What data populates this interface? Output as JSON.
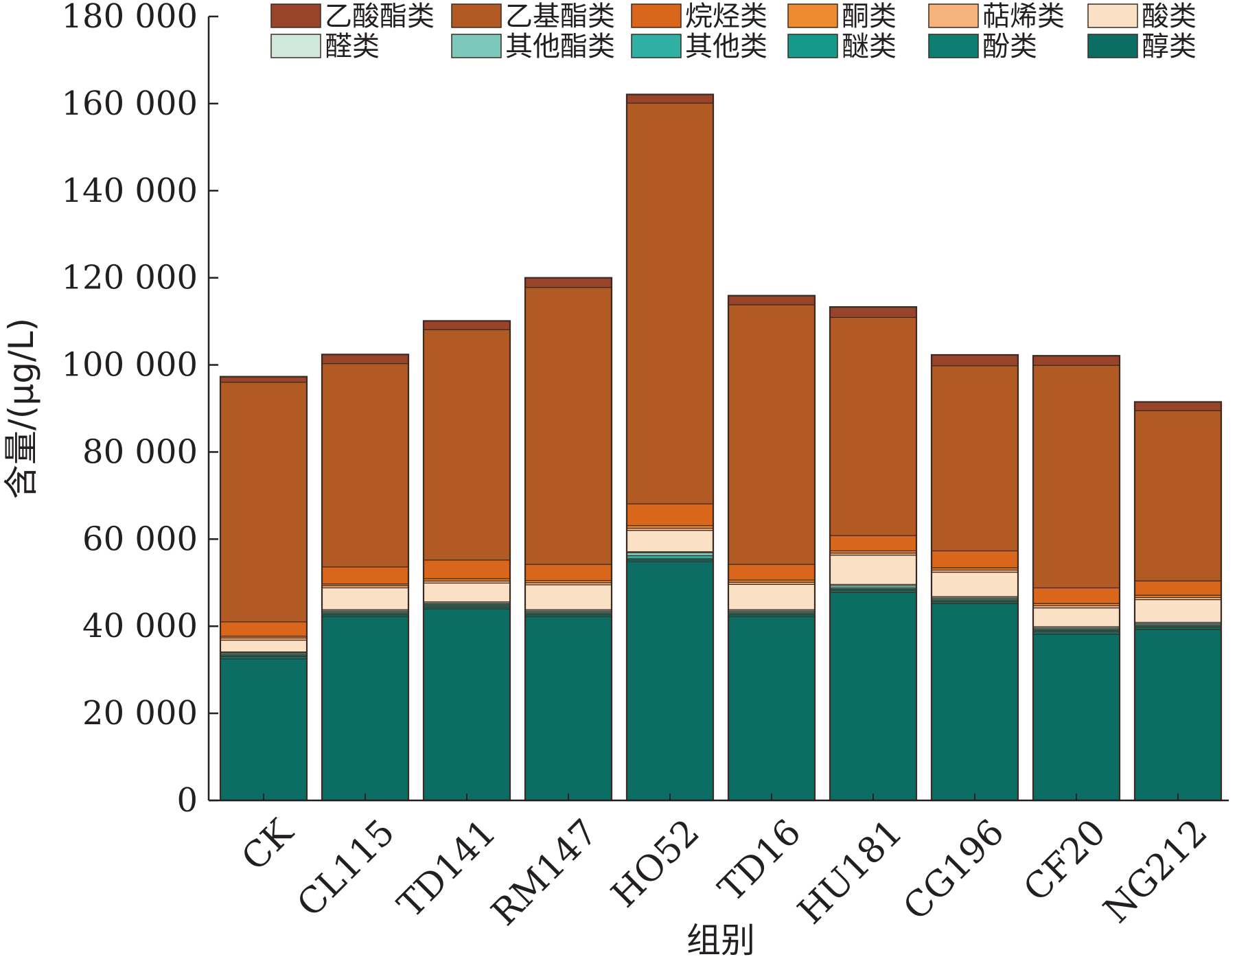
{
  "chart_data": {
    "type": "bar",
    "stacked": true,
    "xlabel": "组别",
    "ylabel": "含量/(μg/L)",
    "ylim": [
      0,
      180000
    ],
    "yticks": [
      0,
      20000,
      40000,
      60000,
      80000,
      100000,
      120000,
      140000,
      160000,
      180000
    ],
    "ytick_labels": [
      "0",
      "20 000",
      "40 000",
      "60 000",
      "80 000",
      "100 000",
      "120 000",
      "140 000",
      "160 000",
      "180 000"
    ],
    "grid": false,
    "legend_position": "top",
    "categories": [
      "CK",
      "CL115",
      "TD141",
      "RM147",
      "HO52",
      "TD16",
      "HU181",
      "CG196",
      "CF20",
      "NG212"
    ],
    "series": [
      {
        "name": "醇类",
        "color": "#0c6d64",
        "values": [
          32500,
          42200,
          44000,
          42200,
          54800,
          42200,
          47800,
          45200,
          38200,
          39300
        ]
      },
      {
        "name": "酚类",
        "color": "#0d7f72",
        "values": [
          500,
          400,
          400,
          400,
          400,
          400,
          400,
          400,
          500,
          400
        ]
      },
      {
        "name": "醚类",
        "color": "#14998a",
        "values": [
          300,
          300,
          300,
          300,
          300,
          300,
          300,
          300,
          300,
          300
        ]
      },
      {
        "name": "其他类",
        "color": "#2eb1a4",
        "values": [
          300,
          300,
          300,
          300,
          700,
          300,
          300,
          300,
          300,
          300
        ]
      },
      {
        "name": "其他酯类",
        "color": "#7cc8bb",
        "values": [
          300,
          300,
          300,
          300,
          700,
          300,
          500,
          300,
          300,
          300
        ]
      },
      {
        "name": "醛类",
        "color": "#cfe9dd",
        "values": [
          200,
          300,
          300,
          300,
          200,
          300,
          300,
          300,
          300,
          300
        ]
      },
      {
        "name": "酸类",
        "color": "#fae1c6",
        "values": [
          2700,
          5000,
          4300,
          5700,
          4900,
          5800,
          6700,
          5600,
          4300,
          5200
        ]
      },
      {
        "name": "萜烯类",
        "color": "#f6b47c",
        "values": [
          500,
          500,
          500,
          500,
          500,
          500,
          500,
          500,
          500,
          500
        ]
      },
      {
        "name": "酮类",
        "color": "#ee8a30",
        "values": [
          400,
          400,
          500,
          500,
          600,
          500,
          500,
          500,
          500,
          500
        ]
      },
      {
        "name": "烷烃类",
        "color": "#d9661a",
        "values": [
          3300,
          3900,
          4300,
          3700,
          5000,
          3600,
          3500,
          3900,
          3600,
          3300
        ]
      },
      {
        "name": "乙基酯类",
        "color": "#b25a23",
        "values": [
          55000,
          46700,
          52900,
          63600,
          92000,
          59600,
          50100,
          42500,
          51100,
          39100
        ]
      },
      {
        "name": "乙酸酯类",
        "color": "#98442a",
        "values": [
          1300,
          2100,
          2000,
          2200,
          2000,
          2100,
          2400,
          2500,
          2200,
          2000
        ]
      }
    ],
    "legend_order": [
      "乙酸酯类",
      "乙基酯类",
      "烷烃类",
      "酮类",
      "萜烯类",
      "酸类",
      "醛类",
      "其他酯类",
      "其他类",
      "醚类",
      "酚类",
      "醇类"
    ]
  }
}
